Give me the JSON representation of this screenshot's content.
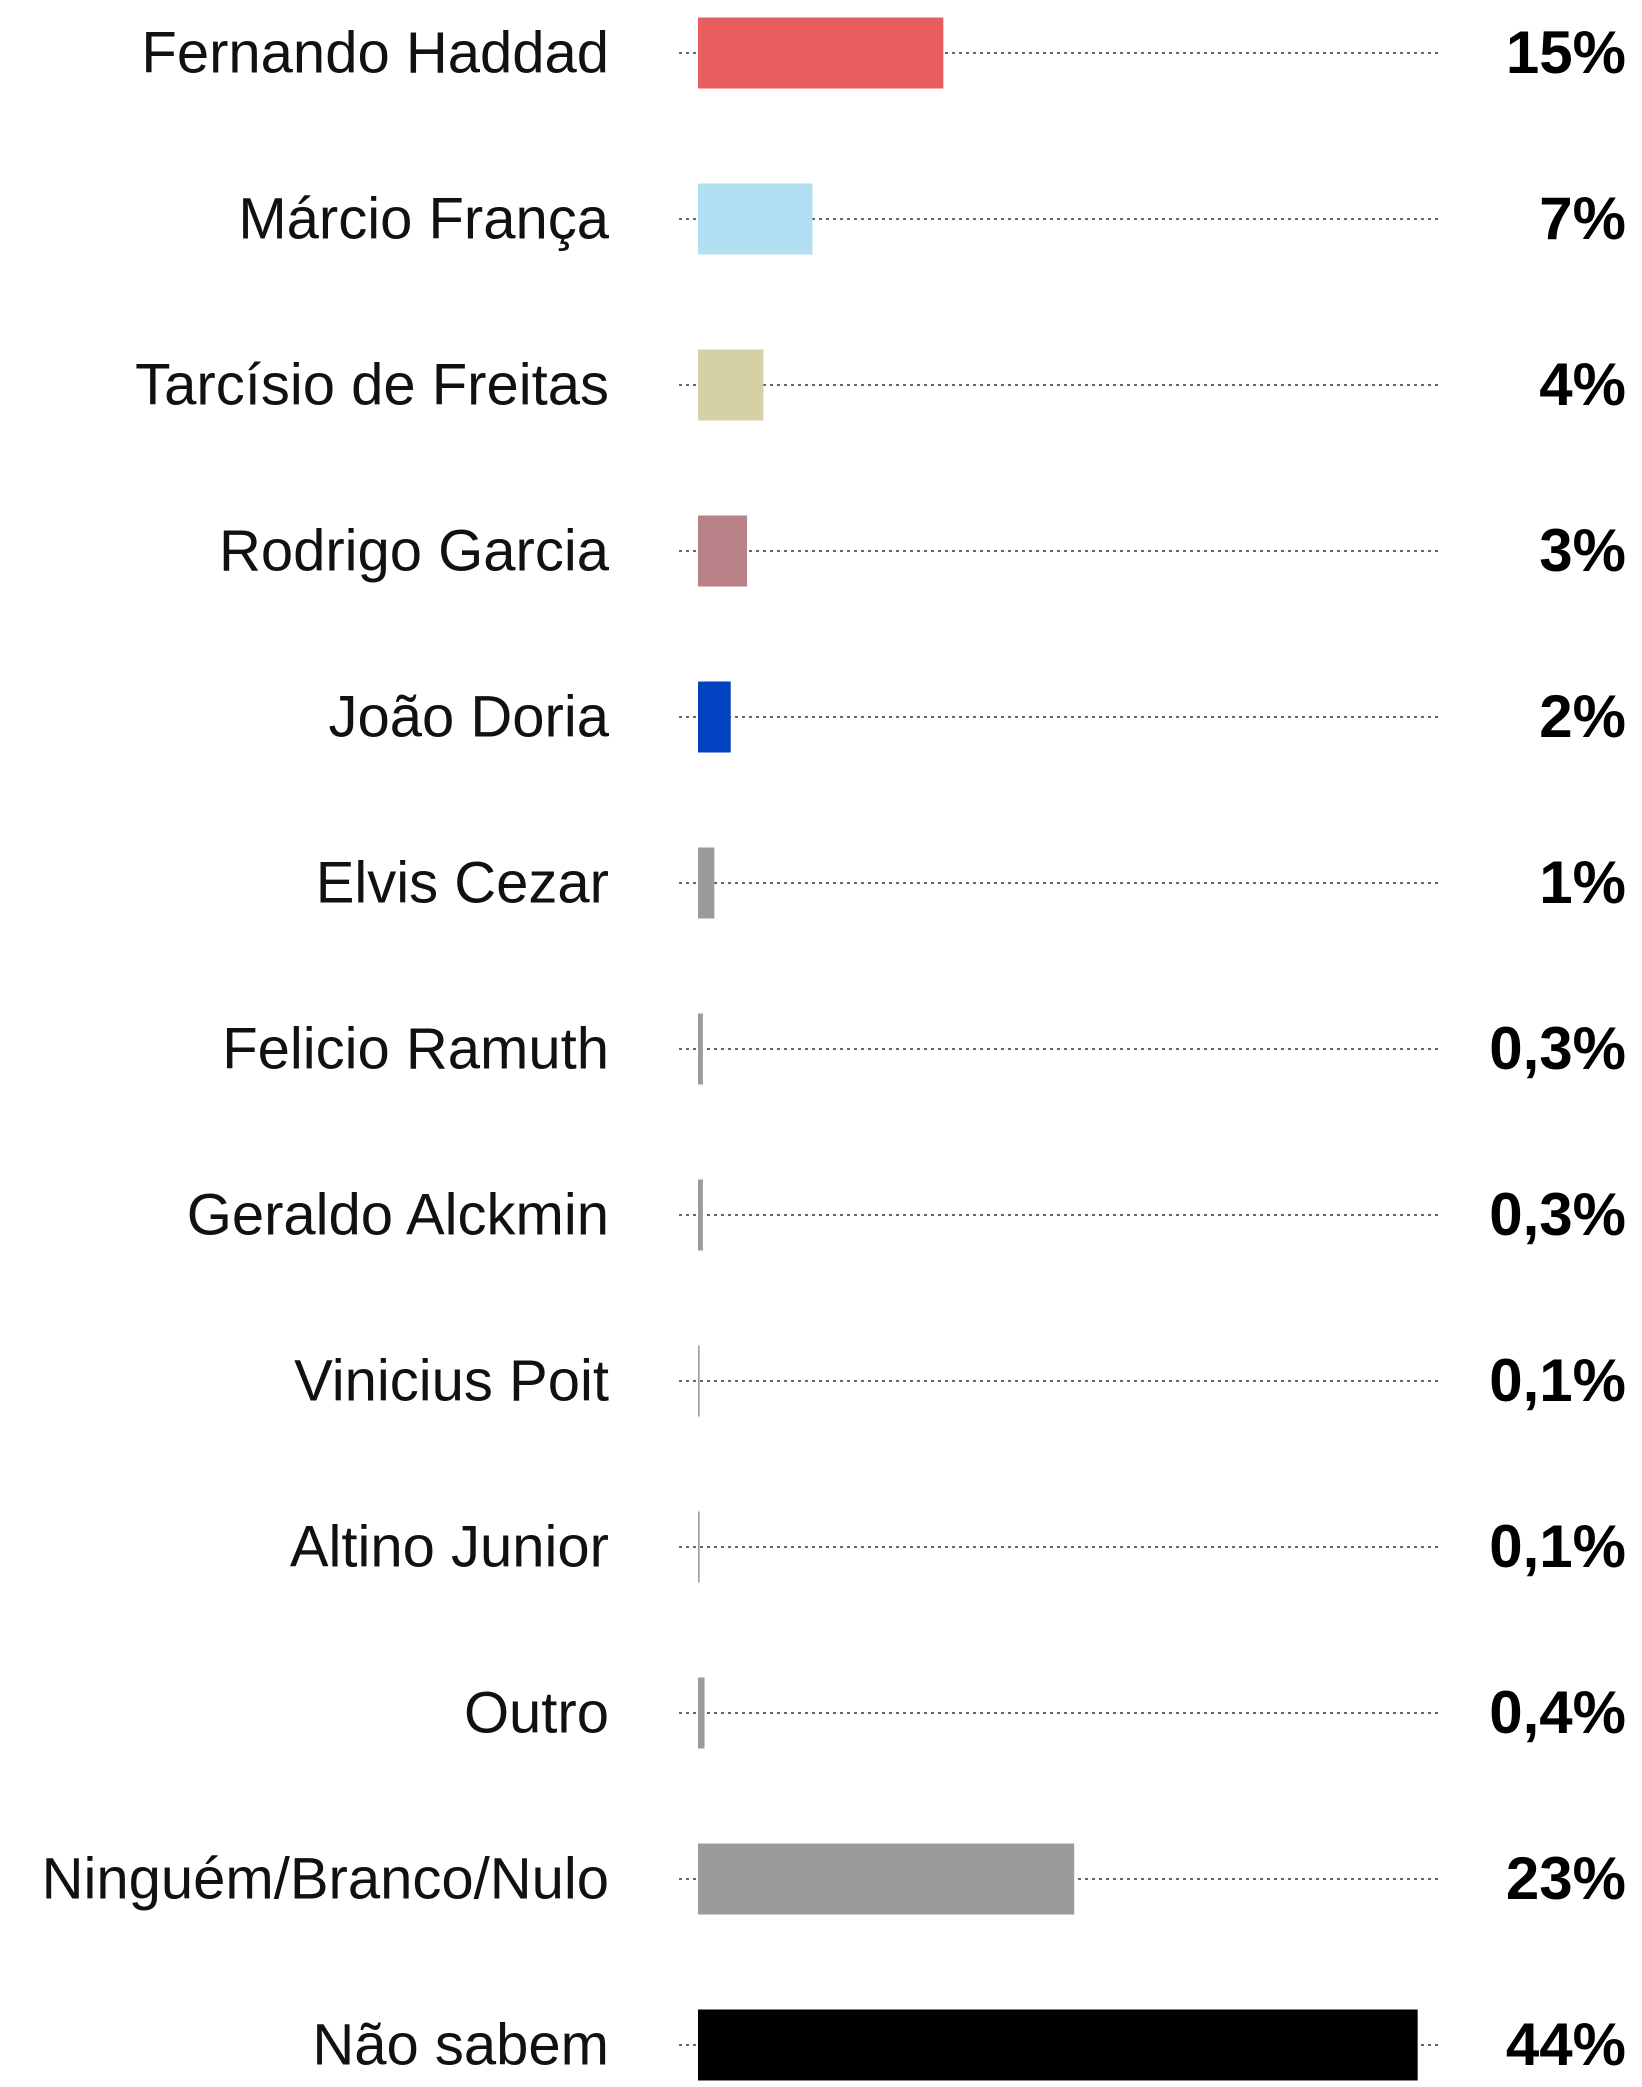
{
  "chart_data": {
    "type": "bar",
    "categories": [
      "Fernando Haddad",
      "Márcio França",
      "Tarcísio de Freitas",
      "Rodrigo Garcia",
      "João Doria",
      "Elvis Cezar",
      "Felicio Ramuth",
      "Geraldo Alckmin",
      "Vinicius Poit",
      "Altino Junior",
      "Outro",
      "Ninguém/Branco/Nulo",
      "Não sabem"
    ],
    "values": [
      15,
      7,
      4,
      3,
      2,
      1,
      0.3,
      0.3,
      0.1,
      0.1,
      0.4,
      23,
      44
    ],
    "value_labels": [
      "15%",
      "7%",
      "4%",
      "3%",
      "2%",
      "1%",
      "0,3%",
      "0,3%",
      "0,1%",
      "0,1%",
      "0,4%",
      "23%",
      "44%"
    ],
    "colors": [
      "#e85d5d",
      "#b3dff2",
      "#d6d0a6",
      "#b98088",
      "#0042c0",
      "#9b9b9b",
      "#9b9b9b",
      "#9b9b9b",
      "#9b9b9b",
      "#9b9b9b",
      "#9b9b9b",
      "#9b9b9b",
      "#000000"
    ],
    "xlim": [
      0,
      45
    ]
  }
}
